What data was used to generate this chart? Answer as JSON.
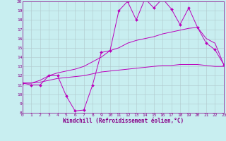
{
  "xlabel": "Windchill (Refroidissement éolien,°C)",
  "bg_color": "#c8eef0",
  "line_color": "#bb00bb",
  "grid_color": "#b0c8cc",
  "spine_color": "#880088",
  "xmin": 0,
  "xmax": 23,
  "ymin": 8,
  "ymax": 20,
  "line1_x": [
    0,
    1,
    2,
    3,
    4,
    5,
    6,
    7,
    8,
    9,
    10,
    11,
    12,
    13,
    14,
    15,
    16,
    17,
    18,
    19,
    20,
    21,
    22,
    23
  ],
  "line1_y": [
    11.2,
    11.0,
    11.0,
    12.0,
    12.0,
    9.8,
    8.2,
    8.3,
    11.0,
    14.5,
    14.7,
    19.0,
    20.0,
    18.0,
    20.3,
    19.3,
    20.3,
    19.2,
    17.5,
    19.3,
    17.2,
    15.5,
    14.8,
    13.2
  ],
  "line2_x": [
    0,
    1,
    2,
    3,
    4,
    5,
    6,
    7,
    8,
    9,
    10,
    11,
    12,
    13,
    14,
    15,
    16,
    17,
    18,
    19,
    20,
    21,
    22,
    23
  ],
  "line2_y": [
    11.2,
    11.2,
    11.5,
    12.0,
    12.3,
    12.5,
    12.7,
    13.0,
    13.5,
    14.0,
    14.7,
    15.0,
    15.5,
    15.8,
    16.0,
    16.2,
    16.5,
    16.7,
    16.9,
    17.1,
    17.2,
    16.0,
    15.5,
    13.2
  ],
  "line3_x": [
    0,
    1,
    2,
    3,
    4,
    5,
    6,
    7,
    8,
    9,
    10,
    11,
    12,
    13,
    14,
    15,
    16,
    17,
    18,
    19,
    20,
    21,
    22,
    23
  ],
  "line3_y": [
    11.2,
    11.2,
    11.3,
    11.5,
    11.7,
    11.8,
    11.9,
    12.0,
    12.2,
    12.4,
    12.5,
    12.6,
    12.7,
    12.8,
    12.9,
    13.0,
    13.1,
    13.1,
    13.2,
    13.2,
    13.2,
    13.1,
    13.0,
    13.0
  ],
  "marker_x": [
    0,
    1,
    2,
    3,
    4,
    5,
    6,
    7,
    8,
    9,
    10,
    11,
    12,
    13,
    14,
    15,
    16,
    17,
    18,
    19,
    20,
    21,
    22,
    23
  ],
  "marker_y": [
    11.2,
    11.0,
    11.0,
    12.0,
    12.0,
    9.8,
    8.2,
    8.3,
    11.0,
    14.5,
    14.7,
    19.0,
    20.0,
    18.0,
    20.3,
    19.3,
    20.3,
    19.2,
    17.5,
    19.3,
    17.2,
    15.5,
    14.8,
    13.2
  ],
  "xlabel_fontsize": 5.5,
  "tick_fontsize": 4.5,
  "linewidth": 0.7,
  "markersize": 2.0
}
